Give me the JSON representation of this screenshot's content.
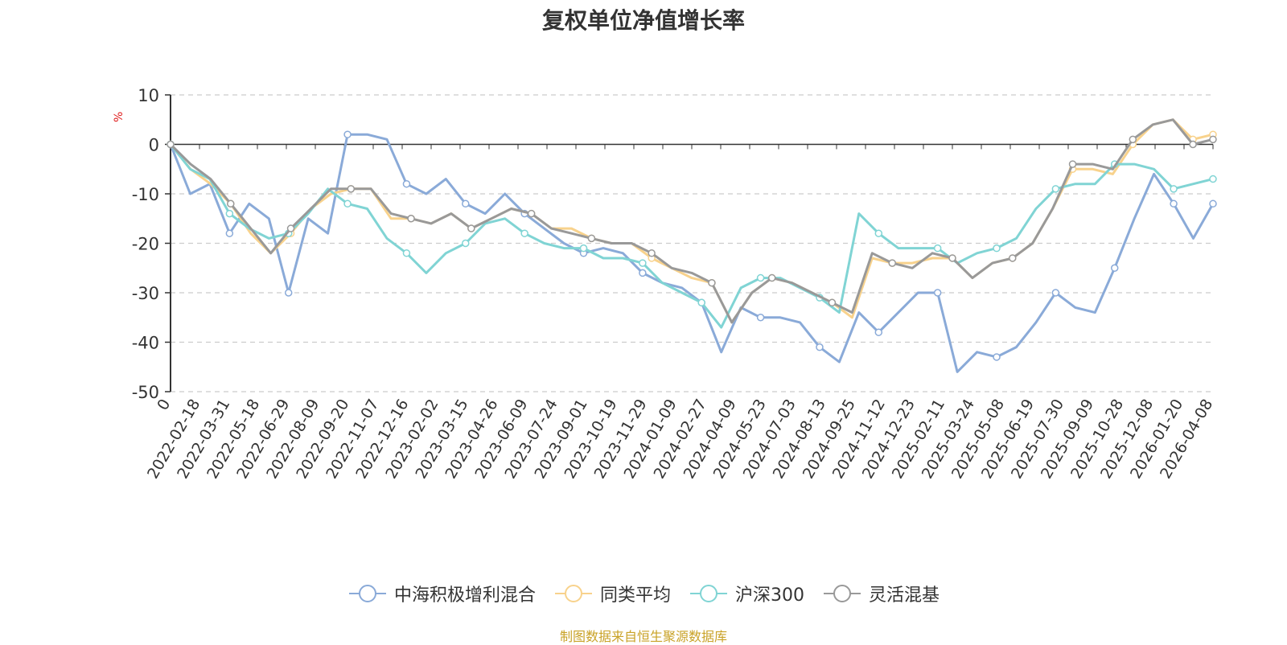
{
  "chart_data": {
    "type": "line",
    "title": "复权单位净值增长率",
    "ylabel": "%",
    "ylim": [
      -50,
      10
    ],
    "yticks": [
      10,
      0,
      -10,
      -20,
      -30,
      -40,
      -50
    ],
    "xticks": [
      "0",
      "2022-02-18",
      "2022-03-31",
      "2022-05-18",
      "2022-06-29",
      "2022-08-09",
      "2022-09-20",
      "2022-11-07",
      "2022-12-16",
      "2023-02-02",
      "2023-03-15",
      "2023-04-26",
      "2023-06-09",
      "2023-07-24",
      "2023-09-01",
      "2023-10-19",
      "2023-11-29",
      "2024-01-09",
      "2024-02-27",
      "2024-04-09",
      "2024-05-23",
      "2024-07-03",
      "2024-08-13",
      "2024-09-25",
      "2024-11-12",
      "2024-12-23",
      "2025-02-11",
      "2025-03-24",
      "2025-05-08",
      "2025-06-19",
      "2025-07-30",
      "2025-09-09",
      "2025-10-28",
      "2025-12-08",
      "2026-01-20",
      "2026-04-08"
    ],
    "series": [
      {
        "name": "中海积极增利混合",
        "color": "#8aaad8",
        "values": [
          0,
          -10,
          -8,
          -18,
          -12,
          -15,
          -30,
          -15,
          -18,
          2,
          2,
          1,
          -8,
          -10,
          -7,
          -12,
          -14,
          -10,
          -14,
          -17,
          -20,
          -22,
          -21,
          -22,
          -26,
          -28,
          -29,
          -32,
          -42,
          -33,
          -35,
          -35,
          -36,
          -41,
          -44,
          -34,
          -38,
          -34,
          -30,
          -30,
          -46,
          -42,
          -43,
          -41,
          -36,
          -30,
          -33,
          -34,
          -25,
          -15,
          -6,
          -12,
          -19,
          -12
        ]
      },
      {
        "name": "同类平均",
        "color": "#f8d28c",
        "values": [
          0,
          -5,
          -8,
          -12,
          -18,
          -22,
          -18,
          -13,
          -10,
          -9,
          -9,
          -15,
          -15,
          -16,
          -14,
          -17,
          -15,
          -13,
          -14,
          -17,
          -17,
          -19,
          -20,
          -20,
          -23,
          -25,
          -27,
          -28,
          -36,
          -30,
          -27,
          -28,
          -30,
          -32,
          -35,
          -23,
          -24,
          -24,
          -23,
          -23,
          -27,
          -24,
          -23,
          -20,
          -13,
          -5,
          -5,
          -6,
          0,
          4,
          5,
          1,
          2
        ]
      },
      {
        "name": "沪深300",
        "color": "#80d4d4",
        "values": [
          0,
          -5,
          -7,
          -14,
          -17,
          -19,
          -18,
          -14,
          -9,
          -12,
          -13,
          -19,
          -22,
          -26,
          -22,
          -20,
          -16,
          -15,
          -18,
          -20,
          -21,
          -21,
          -23,
          -23,
          -24,
          -28,
          -30,
          -32,
          -37,
          -29,
          -27,
          -27,
          -29,
          -31,
          -34,
          -14,
          -18,
          -21,
          -21,
          -21,
          -24,
          -22,
          -21,
          -19,
          -13,
          -9,
          -8,
          -8,
          -4,
          -4,
          -5,
          -9,
          -8,
          -7
        ]
      },
      {
        "name": "灵活混基",
        "color": "#999999",
        "values": [
          0,
          -4,
          -7,
          -12,
          -17,
          -22,
          -17,
          -13,
          -9,
          -9,
          -9,
          -14,
          -15,
          -16,
          -14,
          -17,
          -15,
          -13,
          -14,
          -17,
          -18,
          -19,
          -20,
          -20,
          -22,
          -25,
          -26,
          -28,
          -36,
          -30,
          -27,
          -28,
          -30,
          -32,
          -34,
          -22,
          -24,
          -25,
          -22,
          -23,
          -27,
          -24,
          -23,
          -20,
          -13,
          -4,
          -4,
          -5,
          1,
          4,
          5,
          0,
          1
        ]
      }
    ],
    "legend_position": "bottom",
    "grid": true
  },
  "source_note": "制图数据来自恒生聚源数据库"
}
